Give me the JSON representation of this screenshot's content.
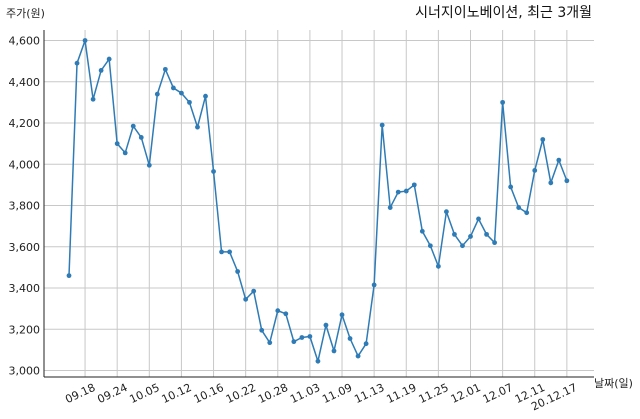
{
  "chart_data": {
    "type": "line",
    "title": "시너지이노베이션, 최근 3개월",
    "xlabel": "날짜(일)",
    "ylabel": "주가(원)",
    "ylim": [
      3000,
      4600
    ],
    "yticks": [
      "3,000",
      "3,200",
      "3,400",
      "3,600",
      "3,800",
      "4,000",
      "4,200",
      "4,400",
      "4,600"
    ],
    "ytick_values": [
      3000,
      3200,
      3400,
      3600,
      3800,
      4000,
      4200,
      4400,
      4600
    ],
    "xticks": [
      "09.18",
      "09.24",
      "10.05",
      "10.12",
      "10.16",
      "10.22",
      "10.28",
      "11.03",
      "11.09",
      "11.13",
      "11.19",
      "11.25",
      "12.01",
      "12.07",
      "12.11",
      "20.12.17"
    ],
    "xtick_index": [
      2,
      6,
      10,
      14,
      18,
      22,
      26,
      30,
      34,
      38,
      42,
      46,
      50,
      54,
      58,
      62
    ],
    "grid": true,
    "series": [
      {
        "color": "#2e7bb5",
        "values": [
          3460,
          4490,
          4600,
          4315,
          4455,
          4510,
          4100,
          4055,
          4185,
          4130,
          3995,
          4340,
          4460,
          4370,
          4345,
          4300,
          4180,
          4330,
          3965,
          3575,
          3575,
          3480,
          3345,
          3385,
          3195,
          3135,
          3290,
          3275,
          3140,
          3160,
          3165,
          3045,
          3220,
          3095,
          3270,
          3155,
          3070,
          3130,
          3415,
          4190,
          3790,
          3865,
          3870,
          3900,
          3675,
          3605,
          3505,
          3770,
          3660,
          3605,
          3650,
          3735,
          3660,
          3620,
          4300,
          3890,
          3790,
          3765,
          3970,
          4120,
          3910,
          4020,
          3920
        ]
      }
    ]
  }
}
